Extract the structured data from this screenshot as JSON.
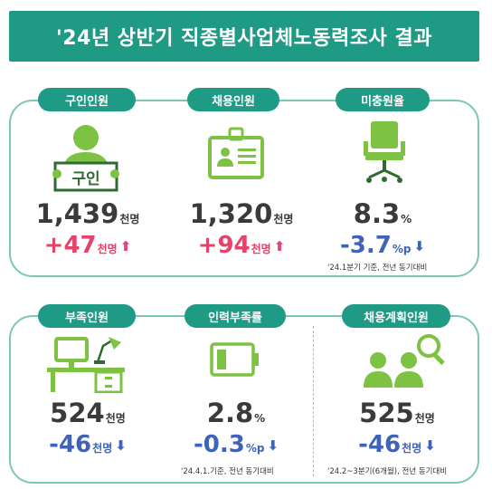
{
  "title": "'24년 상반기 직종별사업체노동력조사 결과",
  "top": [
    {
      "label": "구인인원",
      "sign_text": "구인",
      "value": "1,439",
      "unit": "천명",
      "change": "+47",
      "change_unit": "천명",
      "direction": "up",
      "icon": "person-holding-sign-icon"
    },
    {
      "label": "채용인원",
      "value": "1,320",
      "unit": "천명",
      "change": "+94",
      "change_unit": "천명",
      "direction": "up",
      "icon": "id-badge-icon"
    },
    {
      "label": "미충원율",
      "value": "8.3",
      "unit": "%",
      "change": "-3.7",
      "change_unit": "%p",
      "direction": "down",
      "icon": "office-chair-icon",
      "note": "'24.1분기 기준, 전년 동기대비"
    }
  ],
  "bottom": [
    {
      "label": "부족인원",
      "value": "524",
      "unit": "천명",
      "change": "-46",
      "change_unit": "천명",
      "direction": "down",
      "icon": "desk-lamp-icon"
    },
    {
      "label": "인력부족률",
      "value": "2.8",
      "unit": "%",
      "change": "-0.3",
      "change_unit": "%p",
      "direction": "down",
      "icon": "battery-icon",
      "note": "'24.4.1.기준, 전년 동기대비"
    },
    {
      "label": "채용계획인원",
      "value": "525",
      "unit": "천명",
      "change": "-46",
      "change_unit": "천명",
      "direction": "down",
      "icon": "people-search-icon",
      "note": "'24.2~3분기(6개월), 전년 동기대비"
    }
  ],
  "colors": {
    "teal": "#1f9a84",
    "green": "#7dc242",
    "up": "#e5436a",
    "down": "#3f63b8"
  }
}
